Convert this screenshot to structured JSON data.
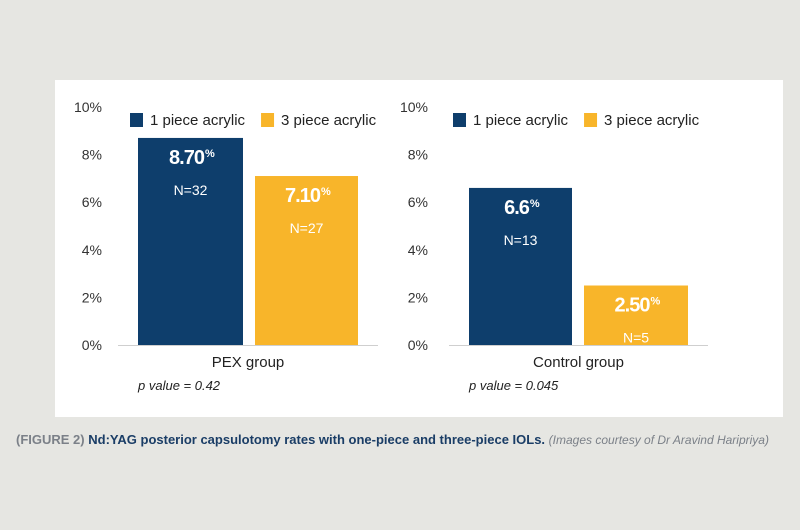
{
  "colors": {
    "series1": "#0e3e6c",
    "series2": "#f8b52a",
    "axis_text": "#333333"
  },
  "chart_data": [
    {
      "type": "bar",
      "categories": [
        "PEX group"
      ],
      "series": [
        {
          "name": "1 piece acrylic",
          "values": [
            8.7
          ],
          "value_label": "8.70",
          "n_label": "N=32"
        },
        {
          "name": "3 piece acrylic",
          "values": [
            7.1
          ],
          "value_label": "7.10",
          "n_label": "N=27"
        }
      ],
      "ylim": [
        0,
        10
      ],
      "yticks": [
        "0%",
        "2%",
        "4%",
        "6%",
        "8%",
        "10%"
      ],
      "legend": "top",
      "grid": false,
      "annotation": "p value = 0.42"
    },
    {
      "type": "bar",
      "categories": [
        "Control group"
      ],
      "series": [
        {
          "name": "1 piece acrylic",
          "values": [
            6.6
          ],
          "value_label": "6.6",
          "n_label": "N=13"
        },
        {
          "name": "3 piece acrylic",
          "values": [
            2.5
          ],
          "value_label": "2.50",
          "n_label": "N=5"
        }
      ],
      "ylim": [
        0,
        10
      ],
      "yticks": [
        "0%",
        "2%",
        "4%",
        "6%",
        "8%",
        "10%"
      ],
      "legend": "top",
      "grid": false,
      "annotation": "p value = 0.045"
    }
  ],
  "caption": {
    "figure_label": "(FIGURE 2)",
    "title": "Nd:YAG posterior capsulotomy rates with one-piece and three-piece IOLs.",
    "credit": "(Images courtesy of Dr Aravind Haripriya)"
  },
  "percent_symbol": "%"
}
